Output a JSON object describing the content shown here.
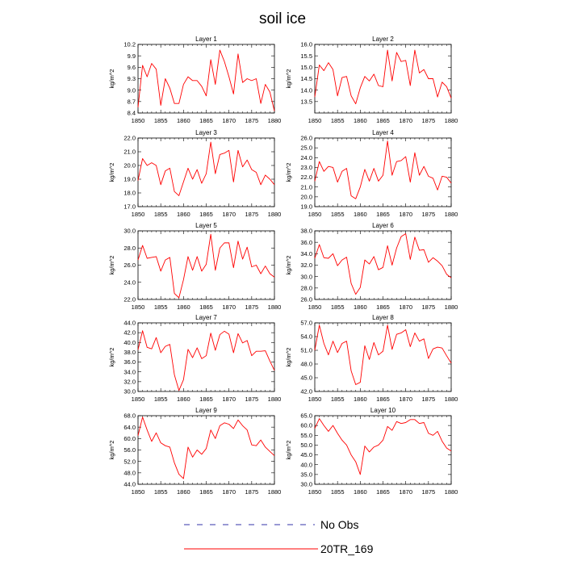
{
  "figure": {
    "title": "soil ice",
    "legend": [
      {
        "label": "No Obs",
        "color": "#3333aa",
        "dash": "dashed"
      },
      {
        "label": "20TR_169",
        "color": "#ff0000",
        "dash": "solid"
      }
    ]
  },
  "chart_data": [
    {
      "type": "line",
      "title": "Layer 1",
      "ylabel": "kg/m^2",
      "xlim": [
        1850,
        1880
      ],
      "ylim": [
        8.4,
        10.2
      ],
      "xticks": [
        "1850",
        "1855",
        "1860",
        "1865",
        "1870",
        "1875",
        "1880"
      ],
      "yticks": [
        "8.4",
        "8.7",
        "9.0",
        "9.3",
        "9.6",
        "9.9",
        "10.2"
      ],
      "x": [
        1850,
        1851,
        1852,
        1853,
        1854,
        1855,
        1856,
        1857,
        1858,
        1859,
        1860,
        1861,
        1862,
        1863,
        1864,
        1865,
        1866,
        1867,
        1868,
        1869,
        1870,
        1871,
        1872,
        1873,
        1874,
        1875,
        1876,
        1877,
        1878,
        1879,
        1880
      ],
      "series": [
        {
          "name": "20TR_169",
          "color": "#ff0000",
          "values": [
            8.55,
            9.65,
            9.35,
            9.7,
            9.55,
            8.6,
            9.3,
            9.05,
            8.65,
            8.65,
            9.15,
            9.35,
            9.25,
            9.25,
            9.1,
            8.85,
            9.8,
            9.15,
            10.05,
            9.75,
            9.35,
            8.9,
            9.95,
            9.2,
            9.3,
            9.25,
            9.3,
            8.65,
            9.15,
            8.95,
            8.45
          ]
        }
      ]
    },
    {
      "type": "line",
      "title": "Layer 2",
      "ylabel": "kg/m^2",
      "xlim": [
        1850,
        1880
      ],
      "ylim": [
        13.0,
        16.0
      ],
      "xticks": [
        "1850",
        "1855",
        "1860",
        "1865",
        "1870",
        "1875",
        "1880"
      ],
      "yticks": [
        "13.5",
        "14.0",
        "14.5",
        "15.0",
        "15.5",
        "16.0"
      ],
      "x": [
        1850,
        1851,
        1852,
        1853,
        1854,
        1855,
        1856,
        1857,
        1858,
        1859,
        1860,
        1861,
        1862,
        1863,
        1864,
        1865,
        1866,
        1867,
        1868,
        1869,
        1870,
        1871,
        1872,
        1873,
        1874,
        1875,
        1876,
        1877,
        1878,
        1879,
        1880
      ],
      "series": [
        {
          "name": "20TR_169",
          "color": "#ff0000",
          "values": [
            13.7,
            15.1,
            14.85,
            15.2,
            14.9,
            13.75,
            14.55,
            14.6,
            13.75,
            13.4,
            14.1,
            14.6,
            14.4,
            14.7,
            14.2,
            14.15,
            15.75,
            14.4,
            15.65,
            15.25,
            15.3,
            14.2,
            15.75,
            14.75,
            14.9,
            14.5,
            14.5,
            13.7,
            14.35,
            14.15,
            13.65
          ]
        }
      ]
    },
    {
      "type": "line",
      "title": "Layer 3",
      "ylabel": "kg/m^2",
      "xlim": [
        1850,
        1880
      ],
      "ylim": [
        17.0,
        22.0
      ],
      "xticks": [
        "1850",
        "1855",
        "1860",
        "1865",
        "1870",
        "1875",
        "1880"
      ],
      "yticks": [
        "17.0",
        "18.0",
        "19.0",
        "20.0",
        "21.0",
        "22.0"
      ],
      "x": [
        1850,
        1851,
        1852,
        1853,
        1854,
        1855,
        1856,
        1857,
        1858,
        1859,
        1860,
        1861,
        1862,
        1863,
        1864,
        1865,
        1866,
        1867,
        1868,
        1869,
        1870,
        1871,
        1872,
        1873,
        1874,
        1875,
        1876,
        1877,
        1878,
        1879,
        1880
      ],
      "series": [
        {
          "name": "20TR_169",
          "color": "#ff0000",
          "values": [
            18.9,
            20.5,
            20.0,
            20.2,
            20.0,
            18.6,
            19.6,
            19.8,
            18.1,
            17.8,
            18.8,
            19.8,
            19.0,
            19.7,
            18.7,
            19.4,
            21.7,
            19.4,
            20.8,
            20.9,
            21.1,
            18.8,
            21.1,
            19.9,
            20.4,
            19.7,
            19.5,
            18.6,
            19.3,
            19.0,
            18.6
          ]
        }
      ]
    },
    {
      "type": "line",
      "title": "Layer 4",
      "ylabel": "kg/m^2",
      "xlim": [
        1850,
        1880
      ],
      "ylim": [
        19.0,
        26.0
      ],
      "xticks": [
        "1850",
        "1855",
        "1860",
        "1865",
        "1870",
        "1875",
        "1880"
      ],
      "yticks": [
        "19.0",
        "20.0",
        "21.0",
        "22.0",
        "23.0",
        "24.0",
        "25.0",
        "26.0"
      ],
      "x": [
        1850,
        1851,
        1852,
        1853,
        1854,
        1855,
        1856,
        1857,
        1858,
        1859,
        1860,
        1861,
        1862,
        1863,
        1864,
        1865,
        1866,
        1867,
        1868,
        1869,
        1870,
        1871,
        1872,
        1873,
        1874,
        1875,
        1876,
        1877,
        1878,
        1879,
        1880
      ],
      "series": [
        {
          "name": "20TR_169",
          "color": "#ff0000",
          "values": [
            21.6,
            23.6,
            22.6,
            23.1,
            23.0,
            21.5,
            22.6,
            22.9,
            20.1,
            19.8,
            21.0,
            22.8,
            21.6,
            22.9,
            21.6,
            22.2,
            25.7,
            22.2,
            23.6,
            23.7,
            24.1,
            21.5,
            24.5,
            22.2,
            23.1,
            22.1,
            21.9,
            20.7,
            22.1,
            22.0,
            21.4
          ]
        }
      ]
    },
    {
      "type": "line",
      "title": "Layer 5",
      "ylabel": "kg/m^2",
      "xlim": [
        1850,
        1880
      ],
      "ylim": [
        22.0,
        30.0
      ],
      "xticks": [
        "1850",
        "1855",
        "1860",
        "1865",
        "1870",
        "1875",
        "1880"
      ],
      "yticks": [
        "22.0",
        "24.0",
        "26.0",
        "28.0",
        "30.0"
      ],
      "x": [
        1850,
        1851,
        1852,
        1853,
        1854,
        1855,
        1856,
        1857,
        1858,
        1859,
        1860,
        1861,
        1862,
        1863,
        1864,
        1865,
        1866,
        1867,
        1868,
        1869,
        1870,
        1871,
        1872,
        1873,
        1874,
        1875,
        1876,
        1877,
        1878,
        1879,
        1880
      ],
      "series": [
        {
          "name": "20TR_169",
          "color": "#ff0000",
          "values": [
            26.6,
            28.3,
            26.8,
            26.9,
            27.0,
            25.3,
            26.6,
            26.9,
            22.7,
            22.2,
            24.3,
            27.0,
            25.4,
            27.0,
            25.3,
            26.1,
            29.6,
            25.4,
            28.0,
            28.6,
            28.6,
            25.7,
            28.8,
            26.7,
            28.1,
            25.8,
            26.0,
            25.0,
            25.9,
            25.0,
            24.6
          ]
        }
      ]
    },
    {
      "type": "line",
      "title": "Layer 6",
      "ylabel": "kg/m^2",
      "xlim": [
        1850,
        1880
      ],
      "ylim": [
        26.0,
        38.0
      ],
      "xticks": [
        "1850",
        "1855",
        "1860",
        "1865",
        "1870",
        "1875",
        "1880"
      ],
      "yticks": [
        "26.0",
        "28.0",
        "30.0",
        "32.0",
        "34.0",
        "36.0",
        "38.0"
      ],
      "x": [
        1850,
        1851,
        1852,
        1853,
        1854,
        1855,
        1856,
        1857,
        1858,
        1859,
        1860,
        1861,
        1862,
        1863,
        1864,
        1865,
        1866,
        1867,
        1868,
        1869,
        1870,
        1871,
        1872,
        1873,
        1874,
        1875,
        1876,
        1877,
        1878,
        1879,
        1880
      ],
      "series": [
        {
          "name": "20TR_169",
          "color": "#ff0000",
          "values": [
            33.2,
            35.6,
            33.3,
            33.2,
            34.0,
            31.9,
            32.9,
            33.4,
            28.8,
            26.9,
            28.1,
            32.9,
            32.2,
            33.5,
            31.2,
            31.6,
            35.4,
            32.0,
            35.0,
            37.0,
            37.5,
            33.0,
            36.9,
            34.6,
            34.7,
            32.5,
            33.3,
            32.7,
            31.9,
            30.4,
            29.8
          ]
        }
      ]
    },
    {
      "type": "line",
      "title": "Layer 7",
      "ylabel": "kg/m^2",
      "xlim": [
        1850,
        1880
      ],
      "ylim": [
        30.0,
        44.0
      ],
      "xticks": [
        "1850",
        "1855",
        "1860",
        "1865",
        "1870",
        "1875",
        "1880"
      ],
      "yticks": [
        "30.0",
        "32.0",
        "34.0",
        "36.0",
        "38.0",
        "40.0",
        "42.0",
        "44.0"
      ],
      "x": [
        1850,
        1851,
        1852,
        1853,
        1854,
        1855,
        1856,
        1857,
        1858,
        1859,
        1860,
        1861,
        1862,
        1863,
        1864,
        1865,
        1866,
        1867,
        1868,
        1869,
        1870,
        1871,
        1872,
        1873,
        1874,
        1875,
        1876,
        1877,
        1878,
        1879,
        1880
      ],
      "series": [
        {
          "name": "20TR_169",
          "color": "#ff0000",
          "values": [
            38.5,
            42.4,
            39.0,
            38.7,
            41.0,
            37.9,
            39.2,
            39.6,
            33.4,
            30.2,
            32.4,
            38.6,
            36.9,
            38.9,
            36.7,
            37.3,
            41.9,
            38.4,
            41.6,
            42.3,
            41.7,
            37.9,
            41.8,
            39.9,
            40.4,
            37.3,
            38.2,
            38.2,
            38.3,
            36.2,
            34.3
          ]
        }
      ]
    },
    {
      "type": "line",
      "title": "Layer 8",
      "ylabel": "kg/m^2",
      "xlim": [
        1850,
        1880
      ],
      "ylim": [
        42.0,
        57.0
      ],
      "xticks": [
        "1850",
        "1855",
        "1860",
        "1865",
        "1870",
        "1875",
        "1880"
      ],
      "yticks": [
        "42.0",
        "45.0",
        "48.0",
        "51.0",
        "54.0",
        "57.0"
      ],
      "x": [
        1850,
        1851,
        1852,
        1853,
        1854,
        1855,
        1856,
        1857,
        1858,
        1859,
        1860,
        1861,
        1862,
        1863,
        1864,
        1865,
        1866,
        1867,
        1868,
        1869,
        1870,
        1871,
        1872,
        1873,
        1874,
        1875,
        1876,
        1877,
        1878,
        1879,
        1880
      ],
      "series": [
        {
          "name": "20TR_169",
          "color": "#ff0000",
          "values": [
            51.0,
            56.5,
            52.5,
            50.0,
            53.0,
            50.5,
            52.5,
            53.0,
            46.5,
            43.5,
            44.0,
            52.0,
            49.0,
            52.7,
            50.0,
            50.8,
            56.5,
            51.2,
            54.5,
            54.8,
            55.5,
            51.8,
            54.8,
            53.0,
            53.5,
            49.2,
            51.3,
            51.7,
            51.5,
            49.8,
            48.2
          ]
        }
      ]
    },
    {
      "type": "line",
      "title": "Layer 9",
      "ylabel": "kg/m^2",
      "xlim": [
        1850,
        1880
      ],
      "ylim": [
        44.0,
        68.0
      ],
      "xticks": [
        "1850",
        "1855",
        "1860",
        "1865",
        "1870",
        "1875",
        "1880"
      ],
      "yticks": [
        "44.0",
        "48.0",
        "52.0",
        "56.0",
        "60.0",
        "64.0",
        "68.0"
      ],
      "x": [
        1850,
        1851,
        1852,
        1853,
        1854,
        1855,
        1856,
        1857,
        1858,
        1859,
        1860,
        1861,
        1862,
        1863,
        1864,
        1865,
        1866,
        1867,
        1868,
        1869,
        1870,
        1871,
        1872,
        1873,
        1874,
        1875,
        1876,
        1877,
        1878,
        1879,
        1880
      ],
      "series": [
        {
          "name": "20TR_169",
          "color": "#ff0000",
          "values": [
            61.0,
            67.5,
            63.0,
            59.0,
            62.0,
            58.5,
            57.5,
            57.0,
            51.5,
            47.5,
            46.0,
            57.0,
            53.5,
            56.0,
            54.5,
            56.5,
            63.0,
            60.0,
            64.5,
            65.5,
            65.0,
            63.5,
            66.5,
            64.5,
            63.0,
            57.8,
            57.5,
            59.5,
            57.0,
            55.5,
            54.0
          ]
        }
      ]
    },
    {
      "type": "line",
      "title": "Layer 10",
      "ylabel": "kg/m^2",
      "xlim": [
        1850,
        1880
      ],
      "ylim": [
        30.0,
        65.0
      ],
      "xticks": [
        "1850",
        "1855",
        "1860",
        "1865",
        "1870",
        "1875",
        "1880"
      ],
      "yticks": [
        "30.0",
        "35.0",
        "40.0",
        "45.0",
        "50.0",
        "55.0",
        "60.0",
        "65.0"
      ],
      "x": [
        1850,
        1851,
        1852,
        1853,
        1854,
        1855,
        1856,
        1857,
        1858,
        1859,
        1860,
        1861,
        1862,
        1863,
        1864,
        1865,
        1866,
        1867,
        1868,
        1869,
        1870,
        1871,
        1872,
        1873,
        1874,
        1875,
        1876,
        1877,
        1878,
        1879,
        1880
      ],
      "series": [
        {
          "name": "20TR_169",
          "color": "#ff0000",
          "values": [
            58.5,
            63.5,
            60.0,
            57.0,
            60.0,
            56.0,
            52.5,
            50.0,
            45.0,
            41.5,
            35.0,
            49.5,
            46.5,
            49.0,
            50.0,
            52.5,
            59.5,
            57.5,
            62.0,
            61.0,
            61.5,
            63.0,
            63.0,
            61.0,
            61.5,
            56.0,
            55.0,
            57.0,
            52.0,
            48.5,
            47.0
          ]
        }
      ]
    }
  ]
}
